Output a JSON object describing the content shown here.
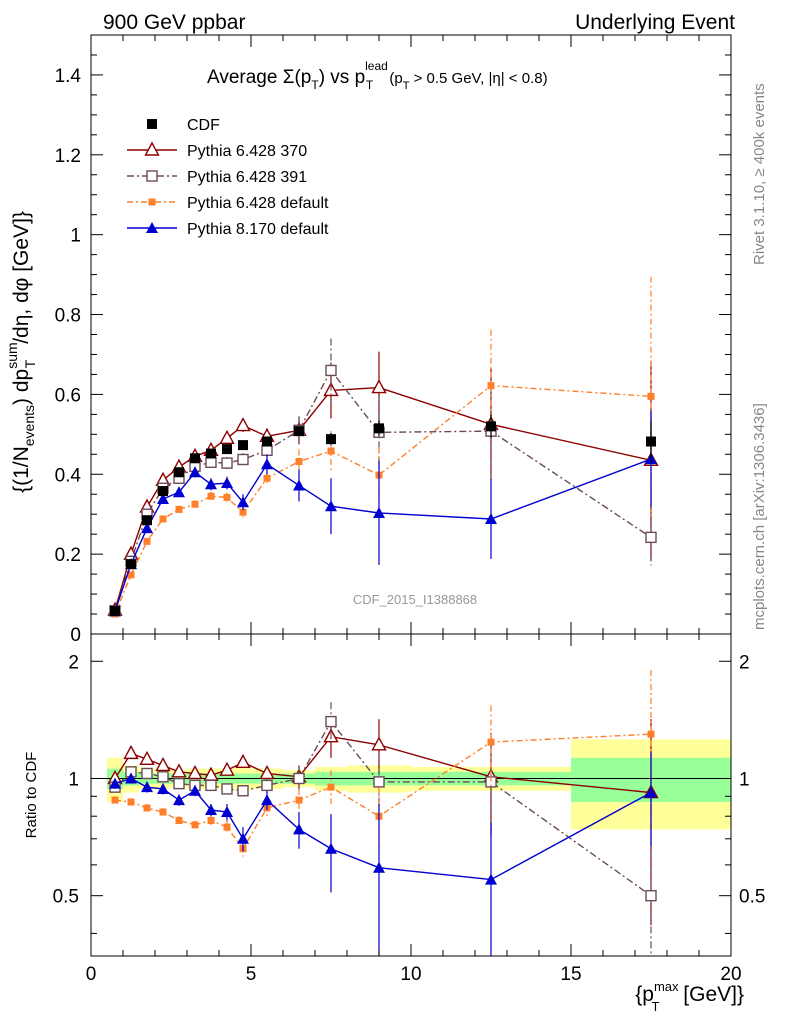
{
  "header": {
    "left": "900 GeV ppbar",
    "right": "Underlying Event"
  },
  "side_labels": {
    "rivet": "Rivet 3.1.10, ≥ 400k events",
    "mcplots": "mcplots.cern.ch [arXiv:1306.3436]"
  },
  "analysis_id": "CDF_2015_I1388868",
  "chart_data": [
    {
      "type": "scatter",
      "title": "Average Σ(pT) vs pT lead (pT > 0.5 GeV, |η| < 0.8)",
      "title_parts": {
        "avg": "Average ",
        "sigma": "Σ(p",
        "sub_t1": "T",
        "close": ") vs p",
        "sup_lead": "lead",
        "sub_t2": "T",
        "cut1": " (p",
        "sub_t3": "T",
        "cut2": " > 0.5 GeV, |η| < 0.8)"
      },
      "ylabel": "{(1/Nevents) dpTsum/dη, dφ [GeV]}",
      "ylabel_parts": {
        "a": "{(1/N",
        "sub_events": "events",
        "b": ") dp",
        "sup_sum": "sum",
        "sub_t": "T",
        "c": "/dη, dφ [GeV]}"
      },
      "xlim": [
        0,
        20
      ],
      "ylim": [
        0,
        1.5
      ],
      "yticks": [
        "0",
        "0.2",
        "0.4",
        "0.6",
        "0.8",
        "1",
        "1.2",
        "1.4"
      ],
      "legend_position": "top-left",
      "series": [
        {
          "name": "CDF",
          "color": "#000000",
          "marker": "filled-square",
          "x": [
            0.75,
            1.25,
            1.75,
            2.25,
            2.75,
            3.25,
            3.75,
            4.25,
            4.75,
            5.5,
            6.5,
            7.5,
            9.0,
            12.5,
            17.5
          ],
          "y": [
            0.058,
            0.175,
            0.285,
            0.358,
            0.405,
            0.44,
            0.452,
            0.463,
            0.473,
            0.482,
            0.508,
            0.488,
            0.515,
            0.52,
            0.482
          ],
          "err": [
            0.003,
            0.004,
            0.005,
            0.006,
            0.006,
            0.007,
            0.008,
            0.009,
            0.01,
            0.01,
            0.012,
            0.015,
            0.02,
            0.03,
            0.05
          ]
        },
        {
          "name": "Pythia 6.428 370",
          "color": "#8b0000",
          "marker": "open-triangle",
          "dash": "",
          "x": [
            0.75,
            1.25,
            1.75,
            2.25,
            2.75,
            3.25,
            3.75,
            4.25,
            4.75,
            5.5,
            6.5,
            7.5,
            9.0,
            12.5,
            17.5
          ],
          "y": [
            0.06,
            0.2,
            0.318,
            0.385,
            0.418,
            0.445,
            0.46,
            0.49,
            0.522,
            0.495,
            0.51,
            0.61,
            0.617,
            0.525,
            0.435
          ],
          "err": [
            0.004,
            0.006,
            0.008,
            0.009,
            0.01,
            0.012,
            0.013,
            0.015,
            0.016,
            0.02,
            0.035,
            0.07,
            0.09,
            0.14,
            0.25
          ]
        },
        {
          "name": "Pythia 6.428 391",
          "color": "#6b4a5a",
          "marker": "open-square",
          "dash": "7 3 2 3",
          "x": [
            0.75,
            1.25,
            1.75,
            2.25,
            2.75,
            3.25,
            3.75,
            4.25,
            4.75,
            5.5,
            6.5,
            7.5,
            9.0,
            12.5,
            17.5
          ],
          "y": [
            0.058,
            0.182,
            0.3,
            0.365,
            0.39,
            0.42,
            0.43,
            0.428,
            0.437,
            0.46,
            0.51,
            0.66,
            0.505,
            0.508,
            0.242
          ],
          "err": [
            0.004,
            0.006,
            0.008,
            0.009,
            0.01,
            0.012,
            0.013,
            0.015,
            0.016,
            0.02,
            0.035,
            0.08,
            0.09,
            0.12,
            0.07
          ]
        },
        {
          "name": "Pythia 6.428 default",
          "color": "#ff7f2a",
          "marker": "filled-square-small",
          "dash": "6 3 2 3",
          "x": [
            0.75,
            1.25,
            1.75,
            2.25,
            2.75,
            3.25,
            3.75,
            4.25,
            4.75,
            5.5,
            6.5,
            7.5,
            9.0,
            12.5,
            17.5
          ],
          "y": [
            0.05,
            0.148,
            0.232,
            0.288,
            0.312,
            0.325,
            0.345,
            0.342,
            0.305,
            0.39,
            0.432,
            0.458,
            0.398,
            0.622,
            0.595
          ],
          "err": [
            0.004,
            0.005,
            0.007,
            0.008,
            0.009,
            0.01,
            0.011,
            0.012,
            0.013,
            0.016,
            0.03,
            0.05,
            0.07,
            0.14,
            0.3
          ]
        },
        {
          "name": "Pythia 8.170 default",
          "color": "#0000d0",
          "marker": "filled-triangle",
          "dash": "",
          "x": [
            0.75,
            1.25,
            1.75,
            2.25,
            2.75,
            3.25,
            3.75,
            4.25,
            4.75,
            5.5,
            6.5,
            7.5,
            9.0,
            12.5,
            17.5
          ],
          "y": [
            0.057,
            0.175,
            0.265,
            0.338,
            0.355,
            0.405,
            0.375,
            0.378,
            0.33,
            0.425,
            0.372,
            0.32,
            0.303,
            0.288,
            0.438
          ],
          "err": [
            0.004,
            0.006,
            0.008,
            0.01,
            0.012,
            0.013,
            0.015,
            0.016,
            0.02,
            0.025,
            0.04,
            0.07,
            0.13,
            0.1,
            0.12
          ]
        }
      ]
    },
    {
      "type": "scatter",
      "title": "",
      "ylabel": "Ratio to CDF",
      "xlabel": "{pTmax [GeV]}",
      "xlabel_parts": {
        "a": "{p",
        "sup_max": "max",
        "sub_t": "T",
        "b": " [GeV]}"
      },
      "xlim": [
        0,
        20
      ],
      "ylim": [
        0.35,
        2.35
      ],
      "xticks": [
        "0",
        "5",
        "10",
        "15",
        "20"
      ],
      "yticks": [
        "0.5",
        "1",
        "2"
      ],
      "reference_line": 1,
      "bands": {
        "yellow_color": "#ffff99",
        "green_color": "#99ff99",
        "edges": [
          0.5,
          1.0,
          1.5,
          2.0,
          2.5,
          3.0,
          3.5,
          4.0,
          4.5,
          5.0,
          6.0,
          7.0,
          8.0,
          10.0,
          15.0,
          20.0
        ],
        "yellow_half": [
          0.13,
          0.08,
          0.06,
          0.06,
          0.05,
          0.06,
          0.06,
          0.06,
          0.07,
          0.06,
          0.05,
          0.07,
          0.08,
          0.07,
          0.26
        ],
        "green_half": [
          0.06,
          0.04,
          0.03,
          0.03,
          0.03,
          0.03,
          0.03,
          0.03,
          0.03,
          0.03,
          0.03,
          0.04,
          0.04,
          0.04,
          0.13
        ]
      },
      "series": [
        {
          "name": "Pythia 6.428 370",
          "color": "#8b0000",
          "marker": "open-triangle",
          "dash": "",
          "x": [
            0.75,
            1.25,
            1.75,
            2.25,
            2.75,
            3.25,
            3.75,
            4.25,
            4.75,
            5.5,
            6.5,
            7.5,
            9.0,
            12.5,
            17.5
          ],
          "y": [
            1.0,
            1.16,
            1.12,
            1.08,
            1.04,
            1.03,
            1.02,
            1.05,
            1.1,
            1.03,
            1.01,
            1.28,
            1.22,
            1.01,
            0.92
          ],
          "err": [
            0.03,
            0.03,
            0.03,
            0.03,
            0.03,
            0.03,
            0.03,
            0.03,
            0.03,
            0.04,
            0.07,
            0.15,
            0.2,
            0.3,
            0.5
          ]
        },
        {
          "name": "Pythia 6.428 391",
          "color": "#6b4a5a",
          "marker": "open-square",
          "dash": "7 3 2 3",
          "x": [
            0.75,
            1.25,
            1.75,
            2.25,
            2.75,
            3.25,
            3.75,
            4.25,
            4.75,
            5.5,
            6.5,
            7.5,
            9.0,
            12.5,
            17.5
          ],
          "y": [
            0.95,
            1.04,
            1.03,
            1.01,
            0.97,
            0.96,
            0.96,
            0.94,
            0.93,
            0.96,
            1.0,
            1.4,
            0.98,
            0.98,
            0.5
          ],
          "err": [
            0.03,
            0.03,
            0.03,
            0.03,
            0.03,
            0.03,
            0.03,
            0.03,
            0.03,
            0.04,
            0.07,
            0.17,
            0.18,
            0.25,
            0.15
          ]
        },
        {
          "name": "Pythia 6.428 default",
          "color": "#ff7f2a",
          "marker": "filled-square-small",
          "dash": "6 3 2 3",
          "x": [
            0.75,
            1.25,
            1.75,
            2.25,
            2.75,
            3.25,
            3.75,
            4.25,
            4.75,
            5.5,
            6.5,
            7.5,
            9.0,
            12.5,
            17.5
          ],
          "y": [
            0.88,
            0.87,
            0.84,
            0.82,
            0.78,
            0.76,
            0.78,
            0.75,
            0.66,
            0.84,
            0.88,
            0.95,
            0.8,
            1.24,
            1.3
          ],
          "err": [
            0.02,
            0.02,
            0.02,
            0.02,
            0.02,
            0.02,
            0.03,
            0.03,
            0.03,
            0.04,
            0.06,
            0.1,
            0.15,
            0.3,
            0.6
          ]
        },
        {
          "name": "Pythia 8.170 default",
          "color": "#0000d0",
          "marker": "filled-triangle",
          "dash": "",
          "x": [
            0.75,
            1.25,
            1.75,
            2.25,
            2.75,
            3.25,
            3.75,
            4.25,
            4.75,
            5.5,
            6.5,
            7.5,
            9.0,
            12.5,
            17.5
          ],
          "y": [
            0.97,
            1.0,
            0.95,
            0.94,
            0.88,
            0.93,
            0.83,
            0.82,
            0.7,
            0.88,
            0.74,
            0.66,
            0.59,
            0.55,
            0.92
          ],
          "err": [
            0.03,
            0.03,
            0.03,
            0.03,
            0.03,
            0.03,
            0.03,
            0.04,
            0.05,
            0.05,
            0.08,
            0.15,
            0.27,
            0.22,
            0.25
          ]
        }
      ]
    }
  ]
}
